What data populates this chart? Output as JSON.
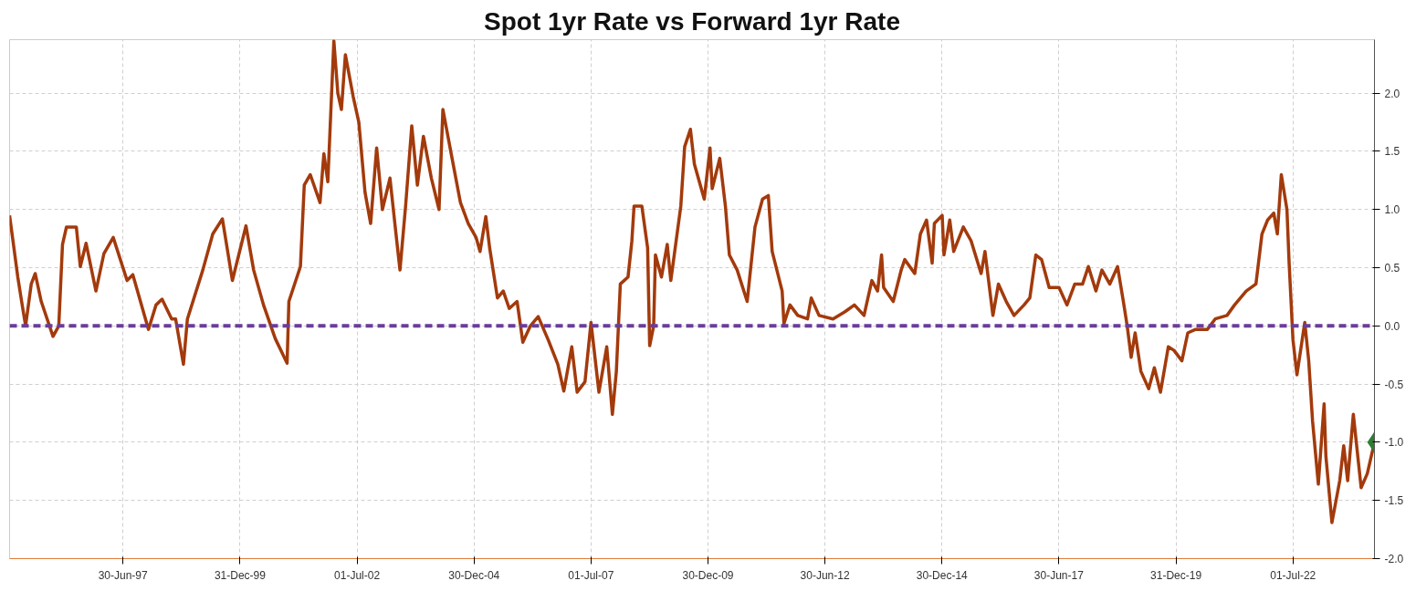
{
  "chart_data": {
    "type": "line",
    "title": "Spot 1yr Rate vs Forward 1yr Rate",
    "xlim": [
      "1995-01-27",
      "2024-03-28"
    ],
    "ylim": [
      -2.0,
      2.46
    ],
    "xticks": [
      {
        "value": "1997-06-30",
        "label": "30-Jun-97"
      },
      {
        "value": "1999-12-31",
        "label": "31-Dec-99"
      },
      {
        "value": "2002-07-01",
        "label": "01-Jul-02"
      },
      {
        "value": "2004-12-30",
        "label": "30-Dec-04"
      },
      {
        "value": "2007-07-01",
        "label": "01-Jul-07"
      },
      {
        "value": "2009-12-30",
        "label": "30-Dec-09"
      },
      {
        "value": "2012-06-30",
        "label": "30-Jun-12"
      },
      {
        "value": "2014-12-30",
        "label": "30-Dec-14"
      },
      {
        "value": "2017-06-30",
        "label": "30-Jun-17"
      },
      {
        "value": "2019-12-31",
        "label": "31-Dec-19"
      },
      {
        "value": "2022-07-01",
        "label": "01-Jul-22"
      }
    ],
    "yticks": [
      {
        "value": -2,
        "label": "-2.0"
      },
      {
        "value": -1.5,
        "label": "-1.5"
      },
      {
        "value": -1,
        "label": "-1.0"
      },
      {
        "value": -0.5,
        "label": "-0.5"
      },
      {
        "value": 0,
        "label": "0.0"
      },
      {
        "value": 0.5,
        "label": "0.5"
      },
      {
        "value": 1,
        "label": "1.0"
      },
      {
        "value": 1.5,
        "label": "1.5"
      },
      {
        "value": 2,
        "label": "2.0"
      }
    ],
    "grid": true,
    "ref_lines": [
      {
        "axis": "y",
        "value": 0,
        "color": "#6a3d9a",
        "line_style": "dashed"
      }
    ],
    "series": [
      {
        "color": "#a33a0c",
        "marker": "none",
        "line_style": "solid",
        "x": [
          "1995-01-27",
          "1995-04-01",
          "1995-05-01",
          "1995-06-01",
          "1995-07-15",
          "1995-08-15",
          "1995-10-01",
          "1996-01-01",
          "1996-02-15",
          "1996-03-15",
          "1996-04-15",
          "1996-07-01",
          "1996-08-01",
          "1996-09-15",
          "1996-12-01",
          "1997-02-01",
          "1997-04-15",
          "1997-08-01",
          "1997-09-15",
          "1998-01-15",
          "1998-03-15",
          "1998-05-01",
          "1998-07-15",
          "1998-08-15",
          "1998-10-15",
          "1998-11-15",
          "1999-03-15",
          "1999-06-01",
          "1999-08-15",
          "1999-11-01",
          "2000-02-15",
          "2000-04-15",
          "2000-07-01",
          "2000-10-01",
          "2001-01-01",
          "2001-01-15",
          "2001-04-15",
          "2001-05-15",
          "2001-07-01",
          "2001-09-15",
          "2001-10-15",
          "2001-11-15",
          "2002-01-01",
          "2002-02-01",
          "2002-03-01",
          "2002-04-01",
          "2002-06-01",
          "2002-07-15",
          "2002-09-01",
          "2002-10-15",
          "2002-12-01",
          "2003-01-15",
          "2003-03-15",
          "2003-05-01",
          "2003-06-01",
          "2003-07-15",
          "2003-09-01",
          "2003-10-15",
          "2003-12-01",
          "2004-02-01",
          "2004-04-01",
          "2004-05-01",
          "2004-07-15",
          "2004-09-15",
          "2004-11-15",
          "2005-01-15",
          "2005-02-15",
          "2005-04-01",
          "2005-05-01",
          "2005-07-01",
          "2005-08-15",
          "2005-10-01",
          "2005-12-01",
          "2006-01-15",
          "2006-03-15",
          "2006-05-15",
          "2006-08-01",
          "2006-10-15",
          "2006-12-01",
          "2007-02-01",
          "2007-03-15",
          "2007-05-15",
          "2007-07-01",
          "2007-09-01",
          "2007-11-01",
          "2007-12-15",
          "2008-01-15",
          "2008-02-15",
          "2008-04-15",
          "2008-05-15",
          "2008-06-01",
          "2008-08-01",
          "2008-09-15",
          "2008-10-01",
          "2008-11-01",
          "2008-11-15",
          "2009-01-01",
          "2009-02-15",
          "2009-03-15",
          "2009-06-01",
          "2009-07-01",
          "2009-08-15",
          "2009-09-15",
          "2009-12-01",
          "2010-01-15",
          "2010-02-01",
          "2010-04-01",
          "2010-05-15",
          "2010-06-15",
          "2010-08-15",
          "2010-11-01",
          "2011-01-01",
          "2011-03-01",
          "2011-04-15",
          "2011-05-15",
          "2011-08-01",
          "2011-08-15",
          "2011-10-01",
          "2011-12-01",
          "2012-02-15",
          "2012-03-15",
          "2012-05-15",
          "2012-09-01",
          "2012-12-01",
          "2013-02-15",
          "2013-05-01",
          "2013-07-01",
          "2013-08-15",
          "2013-09-15",
          "2013-10-01",
          "2013-12-15",
          "2014-02-15",
          "2014-03-15",
          "2014-06-01",
          "2014-07-15",
          "2014-09-01",
          "2014-10-15",
          "2014-11-01",
          "2015-01-01",
          "2015-01-15",
          "2015-03-01",
          "2015-04-01",
          "2015-06-15",
          "2015-08-15",
          "2015-11-01",
          "2015-12-01",
          "2016-02-01",
          "2016-03-15",
          "2016-05-15",
          "2016-07-15",
          "2016-10-01",
          "2016-11-15",
          "2017-01-01",
          "2017-02-15",
          "2017-04-15",
          "2017-07-01",
          "2017-09-01",
          "2017-11-01",
          "2018-01-01",
          "2018-02-15",
          "2018-04-15",
          "2018-06-01",
          "2018-08-01",
          "2018-10-01",
          "2018-11-15",
          "2018-12-15",
          "2019-01-15",
          "2019-02-15",
          "2019-04-01",
          "2019-06-01",
          "2019-07-15",
          "2019-09-01",
          "2019-11-01",
          "2019-12-15",
          "2020-02-15",
          "2020-04-01",
          "2020-06-01",
          "2020-09-01",
          "2020-11-01",
          "2021-02-01",
          "2021-04-01",
          "2021-07-01",
          "2021-09-15",
          "2021-11-01",
          "2021-12-15",
          "2022-02-01",
          "2022-03-01",
          "2022-04-01",
          "2022-05-15",
          "2022-06-01",
          "2022-07-01",
          "2022-08-01",
          "2022-10-01",
          "2022-11-01",
          "2022-12-01",
          "2023-01-15",
          "2023-03-01",
          "2023-03-15",
          "2023-05-01",
          "2023-07-01",
          "2023-08-01",
          "2023-09-01",
          "2023-10-15",
          "2023-12-15",
          "2024-02-01",
          "2024-03-28"
        ],
        "values": [
          0.95,
          0.42,
          0.21,
          0.0,
          0.36,
          0.45,
          0.21,
          -0.09,
          0.0,
          0.7,
          0.85,
          0.85,
          0.51,
          0.71,
          0.3,
          0.62,
          0.76,
          0.39,
          0.44,
          -0.03,
          0.18,
          0.23,
          0.06,
          0.06,
          -0.33,
          0.06,
          0.48,
          0.79,
          0.92,
          0.39,
          0.86,
          0.48,
          0.18,
          -0.11,
          -0.32,
          0.21,
          0.51,
          1.21,
          1.3,
          1.06,
          1.48,
          1.24,
          2.45,
          2.0,
          1.86,
          2.33,
          1.97,
          1.75,
          1.15,
          0.88,
          1.53,
          1.0,
          1.27,
          0.79,
          0.48,
          1.03,
          1.72,
          1.21,
          1.63,
          1.27,
          1.0,
          1.86,
          1.42,
          1.06,
          0.88,
          0.76,
          0.64,
          0.94,
          0.67,
          0.24,
          0.3,
          0.15,
          0.21,
          -0.14,
          0.0,
          0.08,
          -0.12,
          -0.33,
          -0.56,
          -0.18,
          -0.57,
          -0.48,
          0.03,
          -0.57,
          -0.18,
          -0.76,
          -0.39,
          0.36,
          0.42,
          0.73,
          1.03,
          1.03,
          0.67,
          -0.17,
          0.0,
          0.61,
          0.42,
          0.7,
          0.39,
          1.03,
          1.54,
          1.69,
          1.39,
          1.09,
          1.53,
          1.18,
          1.44,
          1.03,
          0.61,
          0.48,
          0.21,
          0.85,
          1.09,
          1.12,
          0.64,
          0.3,
          0.02,
          0.18,
          0.09,
          0.06,
          0.24,
          0.09,
          0.06,
          0.12,
          0.18,
          0.09,
          0.39,
          0.3,
          0.61,
          0.33,
          0.21,
          0.48,
          0.57,
          0.45,
          0.79,
          0.91,
          0.54,
          0.88,
          0.95,
          0.61,
          0.91,
          0.64,
          0.85,
          0.73,
          0.45,
          0.64,
          0.09,
          0.36,
          0.21,
          0.09,
          0.18,
          0.24,
          0.61,
          0.57,
          0.33,
          0.33,
          0.18,
          0.36,
          0.36,
          0.51,
          0.3,
          0.48,
          0.36,
          0.51,
          0.21,
          0.0,
          -0.27,
          -0.06,
          -0.39,
          -0.54,
          -0.36,
          -0.57,
          -0.18,
          -0.21,
          -0.3,
          -0.06,
          -0.03,
          -0.03,
          0.06,
          0.09,
          0.18,
          0.3,
          0.36,
          0.79,
          0.91,
          0.97,
          0.79,
          1.3,
          1.0,
          0.54,
          -0.12,
          -0.42,
          0.03,
          -0.3,
          -0.82,
          -1.36,
          -0.67,
          -1.12,
          -1.69,
          -1.33,
          -1.03,
          -1.33,
          -0.76,
          -1.39,
          -1.27,
          -1.0
        ]
      },
      {
        "type": "scatter",
        "color": "#2e7d32",
        "marker": "diamond",
        "x": [
          "2024-03-28"
        ],
        "values": [
          -1.0
        ]
      }
    ]
  }
}
